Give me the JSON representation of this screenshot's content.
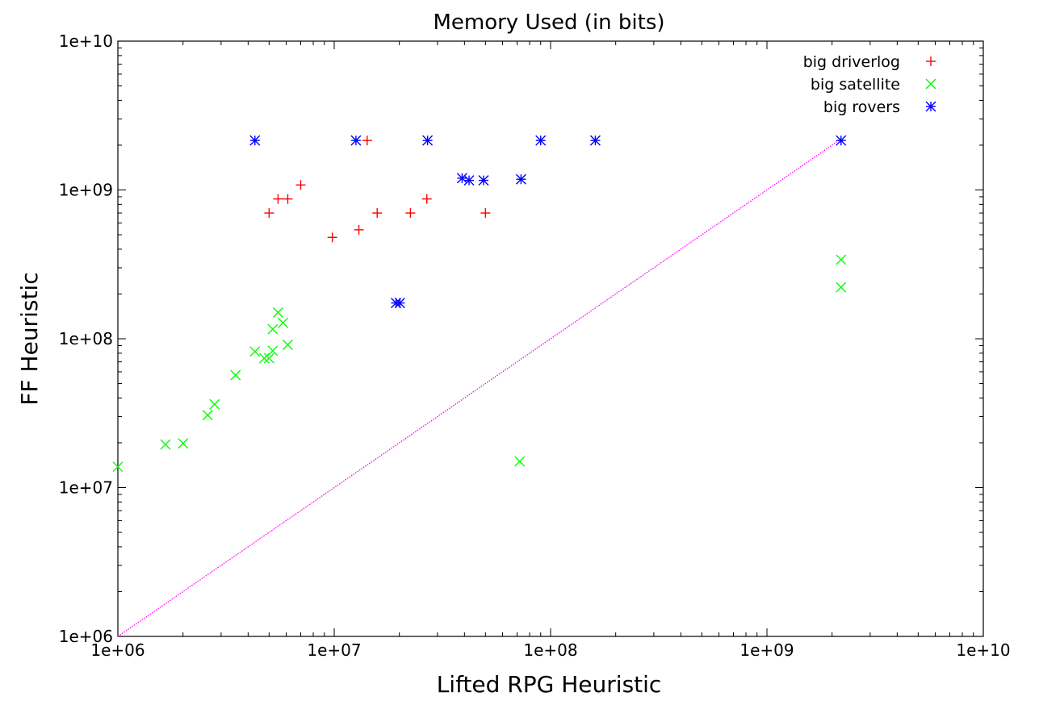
{
  "chart_data": {
    "type": "scatter",
    "title": "Memory Used (in bits)",
    "xlabel": "Lifted RPG Heuristic",
    "ylabel": "FF Heuristic",
    "xscale": "log",
    "yscale": "log",
    "xlim": [
      1000000,
      10000000000
    ],
    "ylim": [
      1000000,
      10000000000
    ],
    "xticks": [
      "1e+06",
      "1e+07",
      "1e+08",
      "1e+09",
      "1e+10"
    ],
    "yticks": [
      "1e+06",
      "1e+07",
      "1e+08",
      "1e+09",
      "1e+10"
    ],
    "grid": false,
    "legend_position": "top-right",
    "series": [
      {
        "name": "big driverlog",
        "marker": "plus",
        "color": "#ff0000",
        "points": [
          [
            5000000,
            700000000
          ],
          [
            5500000,
            870000000
          ],
          [
            6100000,
            870000000
          ],
          [
            7000000,
            1080000000
          ],
          [
            9800000,
            480000000
          ],
          [
            13000000,
            540000000
          ],
          [
            14200000,
            2150000000
          ],
          [
            15800000,
            700000000
          ],
          [
            22500000,
            700000000
          ],
          [
            26800000,
            870000000
          ],
          [
            50000000,
            700000000
          ]
        ]
      },
      {
        "name": "big satellite",
        "marker": "cross",
        "color": "#00ff00",
        "points": [
          [
            1000000,
            13800000
          ],
          [
            1660000,
            19500000
          ],
          [
            2000000,
            19800000
          ],
          [
            2600000,
            30700000
          ],
          [
            2800000,
            36300000
          ],
          [
            3500000,
            57000000
          ],
          [
            4300000,
            82000000
          ],
          [
            4750000,
            74000000
          ],
          [
            5000000,
            74000000
          ],
          [
            5200000,
            83000000
          ],
          [
            5200000,
            116000000
          ],
          [
            5500000,
            150000000
          ],
          [
            5800000,
            128000000
          ],
          [
            6100000,
            91000000
          ],
          [
            72000000,
            15000000
          ],
          [
            2200000000,
            340000000
          ],
          [
            2200000000,
            222000000
          ]
        ]
      },
      {
        "name": "big rovers",
        "marker": "star",
        "color": "#0000ff",
        "points": [
          [
            4300000,
            2150000000
          ],
          [
            12600000,
            2150000000
          ],
          [
            19300000,
            174000000
          ],
          [
            20100000,
            174000000
          ],
          [
            27000000,
            2150000000
          ],
          [
            39000000,
            1200000000
          ],
          [
            42000000,
            1160000000
          ],
          [
            49000000,
            1160000000
          ],
          [
            73000000,
            1180000000
          ],
          [
            90000000,
            2150000000
          ],
          [
            161000000,
            2150000000
          ],
          [
            2200000000,
            2150000000
          ]
        ]
      }
    ],
    "reference_line": {
      "label": "y = x",
      "color": "#ff00ff",
      "from": [
        1000000,
        1000000
      ],
      "to": [
        2200000000,
        2200000000
      ]
    }
  }
}
